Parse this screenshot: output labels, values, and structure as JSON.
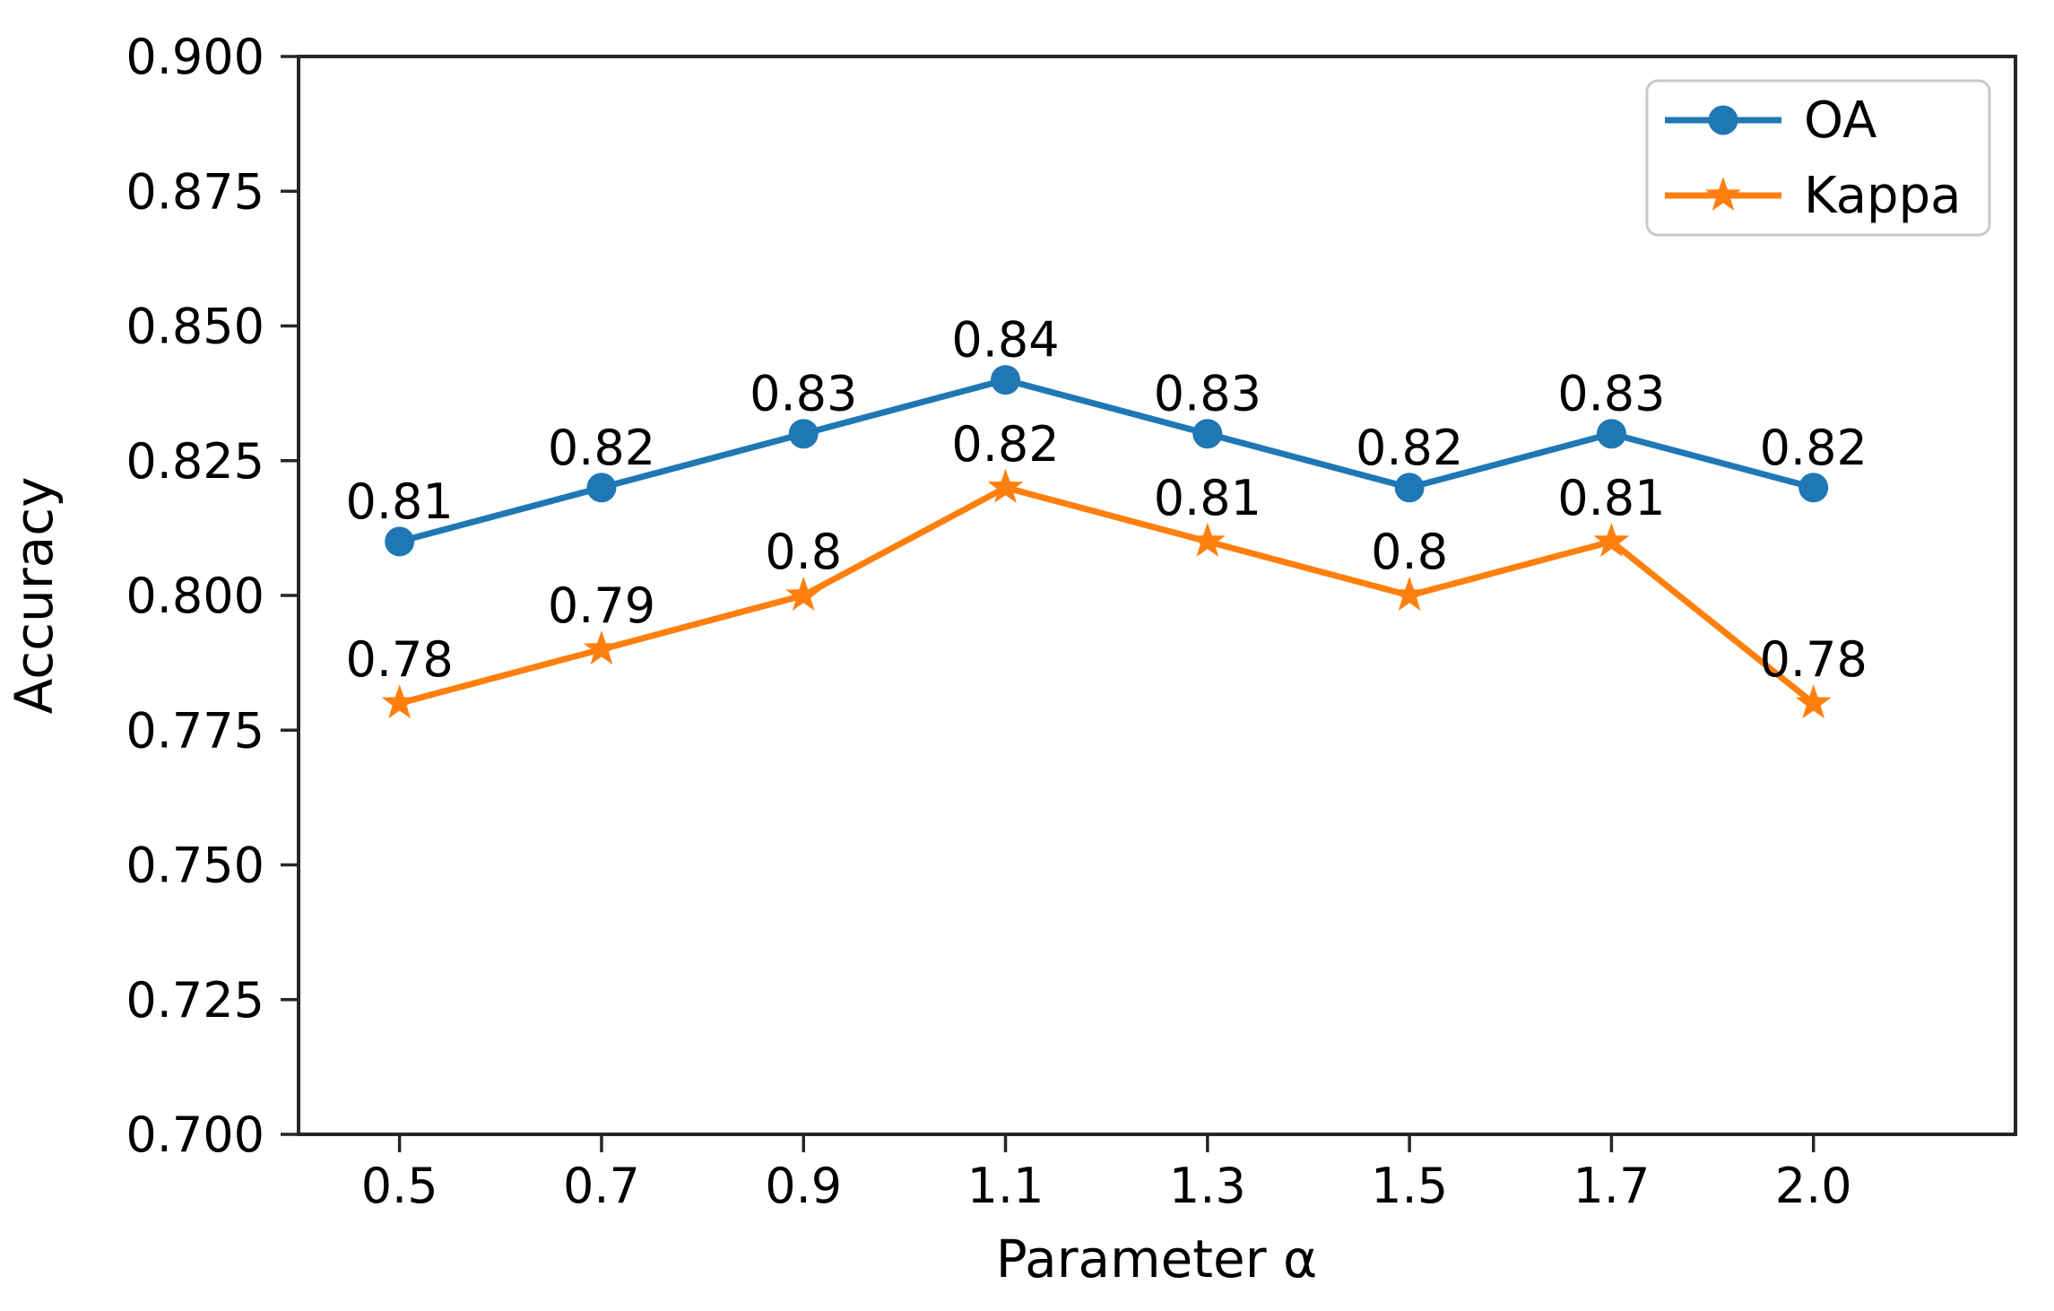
{
  "chart_data": {
    "type": "line",
    "title": "",
    "xlabel": "Parameter α",
    "ylabel": "Accuracy",
    "x_tick_labels": [
      "0.5",
      "0.7",
      "0.9",
      "1.1",
      "1.3",
      "1.5",
      "1.7",
      "2.0"
    ],
    "x_values": [
      0.5,
      0.7,
      0.9,
      1.1,
      1.3,
      1.5,
      1.7,
      2.0
    ],
    "ylim": [
      0.7,
      0.9
    ],
    "y_ticks": [
      0.7,
      0.725,
      0.75,
      0.775,
      0.8,
      0.825,
      0.85,
      0.875,
      0.9
    ],
    "y_tick_labels": [
      "0.700",
      "0.725",
      "0.750",
      "0.775",
      "0.800",
      "0.825",
      "0.850",
      "0.875",
      "0.900"
    ],
    "grid": false,
    "legend_position": "top-right",
    "colors": {
      "oa": "#1f77b4",
      "kappa": "#ff7f0e",
      "spine": "#262626",
      "legend_border": "#c9c9c9"
    },
    "series": [
      {
        "name": "OA",
        "color": "#1f77b4",
        "marker": "circle",
        "values": [
          0.81,
          0.82,
          0.83,
          0.84,
          0.83,
          0.82,
          0.83,
          0.82
        ],
        "point_labels": [
          "0.81",
          "0.82",
          "0.83",
          "0.84",
          "0.83",
          "0.82",
          "0.83",
          "0.82"
        ]
      },
      {
        "name": "Kappa",
        "color": "#ff7f0e",
        "marker": "star",
        "values": [
          0.78,
          0.79,
          0.8,
          0.82,
          0.81,
          0.8,
          0.81,
          0.78
        ],
        "point_labels": [
          "0.78",
          "0.79",
          "0.8",
          "0.82",
          "0.81",
          "0.8",
          "0.81",
          "0.78"
        ]
      }
    ]
  }
}
